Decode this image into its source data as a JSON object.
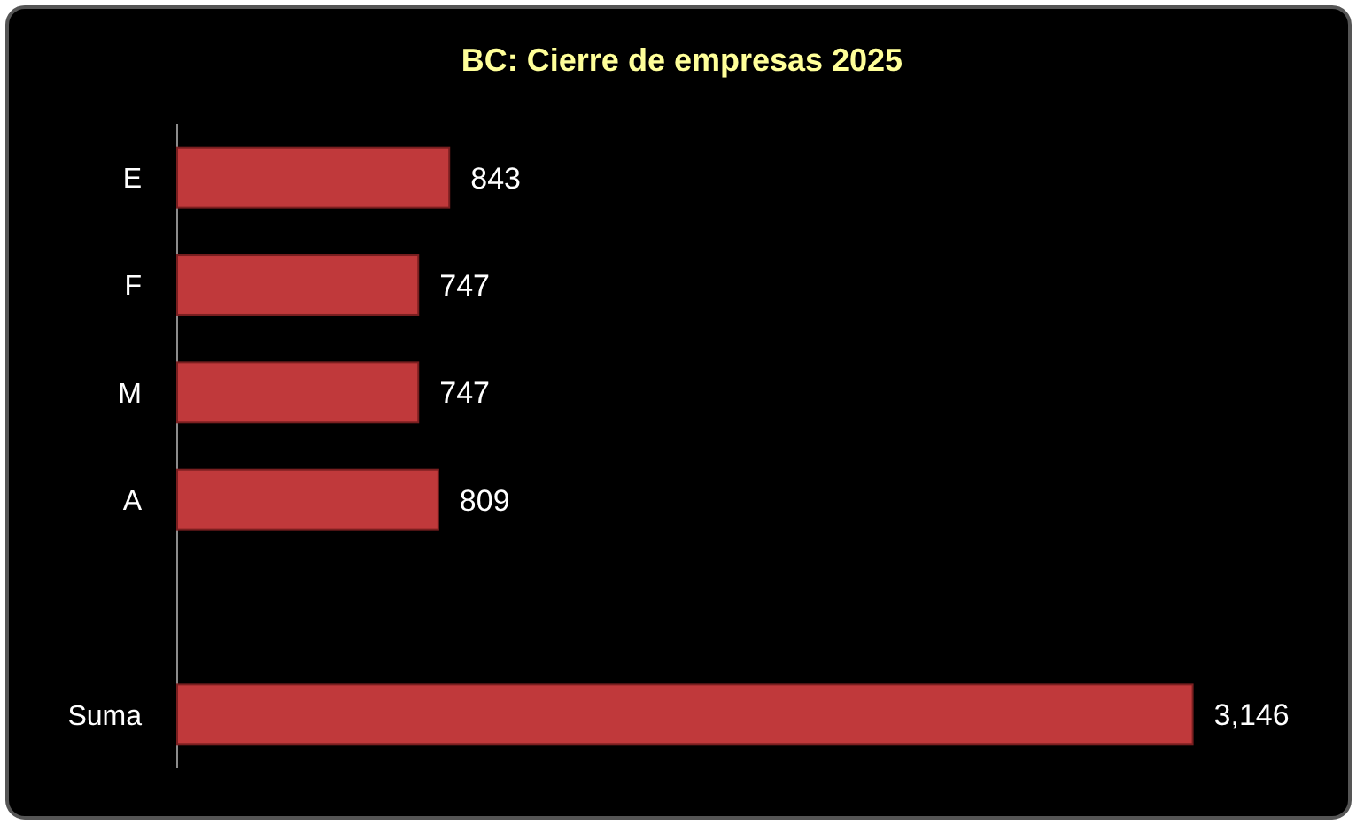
{
  "chart_data": {
    "type": "bar",
    "orientation": "horizontal",
    "title": "BC: Cierre de empresas 2025",
    "categories": [
      "E",
      "F",
      "M",
      "A",
      null,
      "Suma"
    ],
    "values": [
      843,
      747,
      747,
      809,
      null,
      3146
    ],
    "value_labels": [
      "843",
      "747",
      "747",
      "809",
      null,
      "3,146"
    ],
    "color": "#c0393b"
  }
}
